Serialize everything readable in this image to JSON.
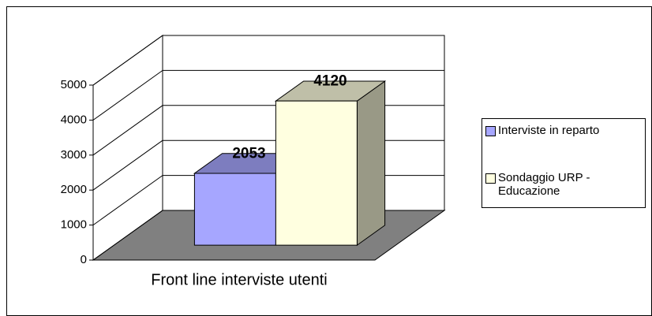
{
  "chart_data": {
    "type": "bar3d",
    "categories": [
      "Front line interviste utenti"
    ],
    "series": [
      {
        "name": "Interviste in reparto",
        "color": "#a6a6ff",
        "values": [
          2053
        ]
      },
      {
        "name": "Sondaggio URP - Educazione",
        "color": "#ffffe0",
        "values": [
          4120
        ]
      }
    ],
    "ylim": [
      0,
      5000
    ],
    "yticks": [
      0,
      1000,
      2000,
      3000,
      4000,
      5000
    ],
    "grid": true,
    "legend": "right"
  }
}
